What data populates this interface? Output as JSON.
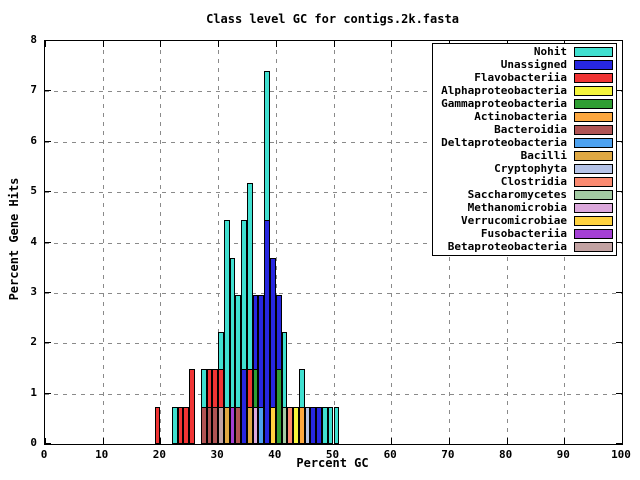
{
  "title": "Class level GC for contigs.2k.fasta",
  "chart_data": {
    "type": "bar",
    "title": "Class level GC for contigs.2k.fasta",
    "xlabel": "Percent GC",
    "ylabel": "Percent Gene Hits",
    "xlim": [
      0,
      100
    ],
    "ylim": [
      0,
      8
    ],
    "xticks": [
      0,
      10,
      20,
      30,
      40,
      50,
      60,
      70,
      80,
      90,
      100
    ],
    "yticks": [
      0,
      1,
      2,
      3,
      4,
      5,
      6,
      7,
      8
    ],
    "grid": true,
    "legend_position": "top-right-inside",
    "bin_width_gc": 1,
    "classes": [
      {
        "name": "Nohit",
        "color": "#40E0D0"
      },
      {
        "name": "Unassigned",
        "color": "#2727E0"
      },
      {
        "name": "Flavobacteriia",
        "color": "#F03434"
      },
      {
        "name": "Alphaproteobacteria",
        "color": "#F5F53C"
      },
      {
        "name": "Gammaproteobacteria",
        "color": "#2F9E33"
      },
      {
        "name": "Actinobacteria",
        "color": "#FCA73F"
      },
      {
        "name": "Bacteroidia",
        "color": "#B05454"
      },
      {
        "name": "Deltaproteobacteria",
        "color": "#4DA2F0"
      },
      {
        "name": "Bacilli",
        "color": "#DFA843"
      },
      {
        "name": "Cryptophyta",
        "color": "#B5C3E8"
      },
      {
        "name": "Clostridia",
        "color": "#FA8A70"
      },
      {
        "name": "Saccharomycetes",
        "color": "#A3CBA3"
      },
      {
        "name": "Methanomicrobia",
        "color": "#DCA8DC"
      },
      {
        "name": "Verrucomicrobiae",
        "color": "#FFD23F"
      },
      {
        "name": "Fusobacteriia",
        "color": "#A43FD4"
      },
      {
        "name": "Betaproteobacteria",
        "color": "#C2A2A2"
      }
    ],
    "bars": [
      {
        "gc": 19,
        "segments": [
          {
            "class": "Flavobacteriia",
            "value": 0.74
          }
        ]
      },
      {
        "gc": 22,
        "segments": [
          {
            "class": "Nohit",
            "value": 0.74
          }
        ]
      },
      {
        "gc": 23,
        "segments": [
          {
            "class": "Flavobacteriia",
            "value": 0.74
          }
        ]
      },
      {
        "gc": 24,
        "segments": [
          {
            "class": "Flavobacteriia",
            "value": 0.74
          }
        ]
      },
      {
        "gc": 25,
        "segments": [
          {
            "class": "Flavobacteriia",
            "value": 1.48
          }
        ]
      },
      {
        "gc": 27,
        "segments": [
          {
            "class": "Nohit",
            "value": 1.48
          },
          {
            "class": "Bacteroidia",
            "value": 0.74
          }
        ]
      },
      {
        "gc": 28,
        "segments": [
          {
            "class": "Flavobacteriia",
            "value": 1.48
          },
          {
            "class": "Bacteroidia",
            "value": 0.74
          }
        ]
      },
      {
        "gc": 29,
        "segments": [
          {
            "class": "Flavobacteriia",
            "value": 1.48
          },
          {
            "class": "Bacteroidia",
            "value": 0.74
          }
        ]
      },
      {
        "gc": 30,
        "segments": [
          {
            "class": "Nohit",
            "value": 2.22
          },
          {
            "class": "Flavobacteriia",
            "value": 1.48
          },
          {
            "class": "Betaproteobacteria",
            "value": 0.74
          }
        ]
      },
      {
        "gc": 31,
        "segments": [
          {
            "class": "Nohit",
            "value": 4.44
          },
          {
            "class": "Bacilli",
            "value": 0.74
          }
        ]
      },
      {
        "gc": 32,
        "segments": [
          {
            "class": "Nohit",
            "value": 3.7
          },
          {
            "class": "Fusobacteriia",
            "value": 0.74
          }
        ]
      },
      {
        "gc": 33,
        "segments": [
          {
            "class": "Nohit",
            "value": 2.96
          },
          {
            "class": "Bacteroidia",
            "value": 0.74
          }
        ]
      },
      {
        "gc": 34,
        "segments": [
          {
            "class": "Nohit",
            "value": 4.44
          },
          {
            "class": "Unassigned",
            "value": 1.48
          }
        ]
      },
      {
        "gc": 35,
        "segments": [
          {
            "class": "Nohit",
            "value": 5.19
          },
          {
            "class": "Flavobacteriia",
            "value": 1.48
          },
          {
            "class": "Bacilli",
            "value": 0.74
          }
        ]
      },
      {
        "gc": 36,
        "segments": [
          {
            "class": "Unassigned",
            "value": 2.96
          },
          {
            "class": "Gammaproteobacteria",
            "value": 1.48
          },
          {
            "class": "Methanomicrobia",
            "value": 0.74
          }
        ]
      },
      {
        "gc": 37,
        "segments": [
          {
            "class": "Unassigned",
            "value": 2.96
          },
          {
            "class": "Deltaproteobacteria",
            "value": 0.74
          }
        ]
      },
      {
        "gc": 38,
        "segments": [
          {
            "class": "Nohit",
            "value": 7.41
          },
          {
            "class": "Unassigned",
            "value": 4.44
          }
        ]
      },
      {
        "gc": 39,
        "segments": [
          {
            "class": "Unassigned",
            "value": 3.7
          },
          {
            "class": "Verrucomicrobiae",
            "value": 0.74
          }
        ]
      },
      {
        "gc": 40,
        "segments": [
          {
            "class": "Unassigned",
            "value": 2.96
          },
          {
            "class": "Gammaproteobacteria",
            "value": 1.48
          }
        ]
      },
      {
        "gc": 41,
        "segments": [
          {
            "class": "Nohit",
            "value": 2.22
          },
          {
            "class": "Saccharomycetes",
            "value": 0.74
          }
        ]
      },
      {
        "gc": 42,
        "segments": [
          {
            "class": "Clostridia",
            "value": 0.74
          }
        ]
      },
      {
        "gc": 43,
        "segments": [
          {
            "class": "Alphaproteobacteria",
            "value": 0.74
          }
        ]
      },
      {
        "gc": 44,
        "segments": [
          {
            "class": "Nohit",
            "value": 1.48
          },
          {
            "class": "Actinobacteria",
            "value": 0.74
          }
        ]
      },
      {
        "gc": 45,
        "segments": [
          {
            "class": "Cryptophyta",
            "value": 0.74
          }
        ]
      },
      {
        "gc": 46,
        "segments": [
          {
            "class": "Unassigned",
            "value": 0.74
          }
        ]
      },
      {
        "gc": 47,
        "segments": [
          {
            "class": "Unassigned",
            "value": 0.74
          }
        ]
      },
      {
        "gc": 48,
        "segments": [
          {
            "class": "Nohit",
            "value": 0.74
          }
        ]
      },
      {
        "gc": 49,
        "segments": [
          {
            "class": "Nohit",
            "value": 0.74
          }
        ]
      },
      {
        "gc": 50,
        "segments": [
          {
            "class": "Nohit",
            "value": 0.74
          }
        ]
      }
    ]
  }
}
